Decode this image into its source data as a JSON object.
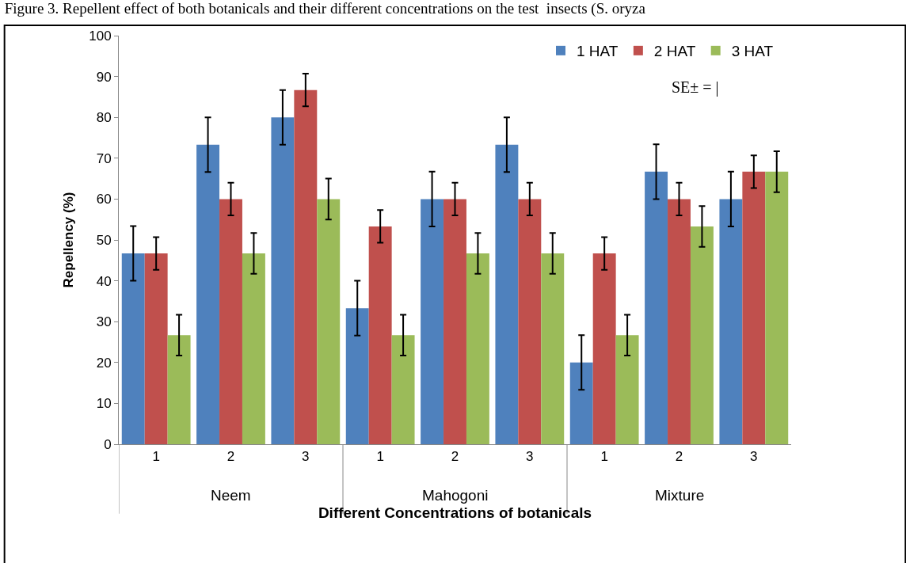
{
  "chart_data": {
    "type": "bar",
    "title": "Figure 3. Repellent effect of both botanicals and their different concentrations on the test  insects (S. oryza",
    "categories": [
      "1",
      "2",
      "3",
      "1",
      "2",
      "3",
      "1",
      "2",
      "3"
    ],
    "series": [
      {
        "name": "1 HAT",
        "color": "#4f81bd",
        "values": [
          46.7,
          73.3,
          80,
          33.3,
          60,
          73.3,
          20,
          66.7,
          60
        ],
        "errors": [
          6.7,
          6.7,
          6.7,
          6.7,
          6.7,
          6.7,
          6.7,
          6.7,
          6.7
        ]
      },
      {
        "name": "2 HAT",
        "color": "#c0504d",
        "values": [
          46.7,
          60,
          86.7,
          53.3,
          60,
          60,
          46.7,
          60,
          66.7
        ],
        "errors": [
          4,
          4,
          4,
          4,
          4,
          4,
          4,
          4,
          4
        ]
      },
      {
        "name": "3 HAT",
        "color": "#9bbb59",
        "values": [
          26.7,
          46.7,
          60,
          26.7,
          46.7,
          46.7,
          26.7,
          53.3,
          66.7
        ],
        "errors": [
          5,
          5,
          5,
          5,
          5,
          5,
          5,
          5,
          5
        ]
      }
    ],
    "annotations": [
      "Neem",
      "Mahogoni",
      "Mixture",
      "SE± = |"
    ],
    "xlabel": "Different Concentrations of botanicals",
    "ylabel": "Repellency (%)",
    "ylim": [
      0,
      100
    ],
    "yticks": [
      0,
      10,
      20,
      30,
      40,
      50,
      60,
      70,
      80,
      90,
      100
    ],
    "grid": false,
    "legend": "top right"
  }
}
